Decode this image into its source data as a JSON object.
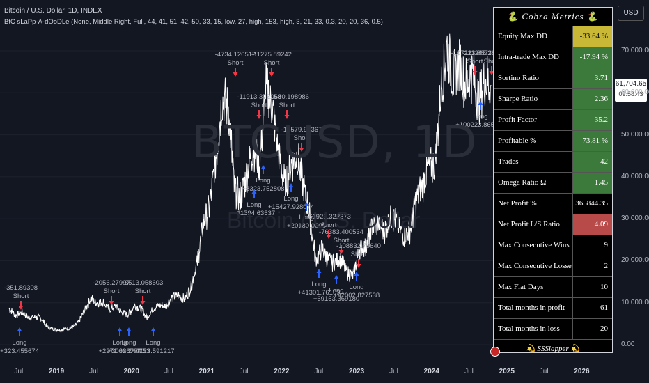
{
  "header": {
    "title": "Bitcoin / U.S. Dollar, 1D, INDEX",
    "indicator": "BtC sLaPp-A-dOoDLe (None, Middle Right, Full, 44, 41, 51, 42, 50, 33, 15, low, 27, high, 153, high, 3, 21, 33, 0.3, 20, 20, 36, 0.5)"
  },
  "watermark": {
    "symbol": "BTCUSD, 1D",
    "name": "Bitcoin / U.S. Dollar"
  },
  "metrics": {
    "title": "🐍 Cobra Metrics 🐍",
    "rows": [
      {
        "label": "Equity Max DD",
        "value": "-33.64 %",
        "bg": "#c8b836",
        "color": "#111111"
      },
      {
        "label": "Intra-trade Max DD",
        "value": "-17.94 %",
        "bg": "#3b7a3a",
        "color": "#ffffff"
      },
      {
        "label": "Sortino Ratio",
        "value": "3.71",
        "bg": "#3b7a3a",
        "color": "#ffffff"
      },
      {
        "label": "Sharpe Ratio",
        "value": "2.36",
        "bg": "#3b7a3a",
        "color": "#ffffff"
      },
      {
        "label": "Profit Factor",
        "value": "35.2",
        "bg": "#3b7a3a",
        "color": "#ffffff"
      },
      {
        "label": "Profitable %",
        "value": "73.81 %",
        "bg": "#3b7a3a",
        "color": "#ffffff"
      },
      {
        "label": "Trades",
        "value": "42",
        "bg": "#3b7a3a",
        "color": "#ffffff"
      },
      {
        "label": "Omega Ratio Ω",
        "value": "1.45",
        "bg": "#3b7a3a",
        "color": "#ffffff"
      },
      {
        "label": "Net Profit %",
        "value": "365844.35 %",
        "bg": "#000000",
        "color": "#ffffff"
      },
      {
        "label": "Net Profit L/S Ratio",
        "value": "4.09",
        "bg": "#b84a4a",
        "color": "#ffffff"
      },
      {
        "label": "Max Consecutive Wins",
        "value": "9",
        "bg": "#000000",
        "color": "#ffffff"
      },
      {
        "label": "Max Consecutive Losses",
        "value": "2",
        "bg": "#000000",
        "color": "#ffffff"
      },
      {
        "label": "Max Flat Days",
        "value": "10",
        "bg": "#000000",
        "color": "#ffffff"
      },
      {
        "label": "Total months in profit",
        "value": "61",
        "bg": "#000000",
        "color": "#ffffff"
      },
      {
        "label": "Total months in loss",
        "value": "20",
        "bg": "#000000",
        "color": "#ffffff"
      }
    ],
    "footer": "💫 SSSlapper 💫"
  },
  "price_axis": {
    "currency": "USD",
    "current_price": "61,704.65",
    "countdown": "09:58:43",
    "tick_labels": [
      "70,000.00",
      "60,000.00",
      "50,000.00",
      "40,000.00",
      "30,000.00",
      "20,000.00",
      "10,000.00",
      "0.00"
    ]
  },
  "time_axis": {
    "labels": [
      {
        "text": "Jul",
        "year": false
      },
      {
        "text": "2019",
        "year": true
      },
      {
        "text": "Jul",
        "year": false
      },
      {
        "text": "2020",
        "year": true
      },
      {
        "text": "Jul",
        "year": false
      },
      {
        "text": "2021",
        "year": true
      },
      {
        "text": "Jul",
        "year": false
      },
      {
        "text": "2022",
        "year": true
      },
      {
        "text": "Jul",
        "year": false
      },
      {
        "text": "2023",
        "year": true
      },
      {
        "text": "Jul",
        "year": false
      },
      {
        "text": "2024",
        "year": true
      },
      {
        "text": "Jul",
        "year": false
      },
      {
        "text": "2025",
        "year": true
      },
      {
        "text": "Jul",
        "year": false
      },
      {
        "text": "2026",
        "year": true
      }
    ]
  },
  "colors": {
    "background": "#131722",
    "price_line": "#ffffff",
    "long_arrow": "#2962ff",
    "short_arrow": "#f23645",
    "annotation_text": "#b2b5be"
  },
  "chart_data": {
    "type": "line",
    "title": "Bitcoin / U.S. Dollar, 1D, INDEX",
    "xlabel": "",
    "ylabel": "",
    "ylim": [
      0,
      78000
    ],
    "x_range": [
      "2018-04",
      "2026-06"
    ],
    "grid": true,
    "series": [
      {
        "x": [
          "2018-05",
          "2018-06",
          "2018-07",
          "2018-08",
          "2018-09",
          "2018-10",
          "2018-11",
          "2018-12",
          "2019-01",
          "2019-02",
          "2019-03",
          "2019-04",
          "2019-05",
          "2019-06",
          "2019-07",
          "2019-08",
          "2019-09",
          "2019-10",
          "2019-11",
          "2019-12",
          "2020-01",
          "2020-02",
          "2020-03",
          "2020-04",
          "2020-05",
          "2020-06",
          "2020-07",
          "2020-08",
          "2020-09",
          "2020-10",
          "2020-11",
          "2020-12",
          "2021-01",
          "2021-02",
          "2021-03",
          "2021-04",
          "2021-05",
          "2021-06",
          "2021-07",
          "2021-08",
          "2021-09",
          "2021-10",
          "2021-11",
          "2021-12",
          "2022-01",
          "2022-02",
          "2022-03",
          "2022-04",
          "2022-05",
          "2022-06",
          "2022-07",
          "2022-08",
          "2022-09",
          "2022-10",
          "2022-11",
          "2022-12",
          "2023-01",
          "2023-02",
          "2023-03",
          "2023-04",
          "2023-05",
          "2023-06",
          "2023-07",
          "2023-08",
          "2023-09",
          "2023-10",
          "2023-11",
          "2023-12",
          "2024-01",
          "2024-02",
          "2024-03",
          "2024-04",
          "2024-05",
          "2024-06",
          "2024-07",
          "2024-08",
          "2024-09",
          "2024-10"
        ],
        "values": [
          8500,
          7000,
          7700,
          6500,
          6600,
          6400,
          4300,
          3700,
          3500,
          3800,
          4000,
          5200,
          8000,
          11000,
          10000,
          10200,
          8300,
          9200,
          7600,
          7200,
          9300,
          8600,
          6400,
          8600,
          9400,
          9200,
          11300,
          11700,
          10800,
          13700,
          19700,
          29000,
          33000,
          45000,
          58000,
          57000,
          37000,
          35000,
          41000,
          47000,
          43000,
          61000,
          57000,
          46000,
          38000,
          43000,
          45000,
          38000,
          31000,
          20000,
          23000,
          20000,
          19500,
          20500,
          17000,
          16500,
          23000,
          23500,
          28000,
          29000,
          27000,
          30500,
          29200,
          26000,
          27000,
          34500,
          37700,
          42300,
          42500,
          61000,
          71000,
          63000,
          67000,
          62000,
          65000,
          58500,
          63300,
          61700
        ]
      }
    ],
    "trades": [
      {
        "side": "Long",
        "label": "+323.455674"
      },
      {
        "side": "Short",
        "label": "-351.89308"
      },
      {
        "side": "Long",
        "label": "+2271.326794"
      },
      {
        "side": "Long",
        "label": "+3006.240753"
      },
      {
        "side": "Long",
        "label": "+4123.591217"
      },
      {
        "side": "Short",
        "label": "-2056.27997"
      },
      {
        "side": "Short",
        "label": "-3513.058603"
      },
      {
        "side": "Short",
        "label": "-4734.126512"
      },
      {
        "side": "Short",
        "label": "-11275.89242"
      },
      {
        "side": "Short",
        "label": "-11913.378158"
      },
      {
        "side": "Long",
        "label": "+8323.752808"
      },
      {
        "side": "Long",
        "label": "+11594.63537"
      },
      {
        "side": "Short",
        "label": "-20680.198986"
      },
      {
        "side": "Short",
        "label": "-19579.96367"
      },
      {
        "side": "Long",
        "label": "+15427.928074"
      },
      {
        "side": "Long",
        "label": "+20180.0605"
      },
      {
        "side": "Short",
        "label": "-61923.322373"
      },
      {
        "side": "Short",
        "label": "-76383.400534"
      },
      {
        "side": "Short",
        "label": "-108832.70640"
      },
      {
        "side": "Long",
        "label": "+41301.76109"
      },
      {
        "side": "Long",
        "label": "+69153.369180"
      },
      {
        "side": "Long",
        "label": "+92002.827538"
      },
      {
        "side": "Short",
        "label": "-107223.887349"
      },
      {
        "side": "Short",
        "label": "-111245.265558492"
      },
      {
        "side": "Long",
        "label": "+100223.865622"
      }
    ]
  }
}
